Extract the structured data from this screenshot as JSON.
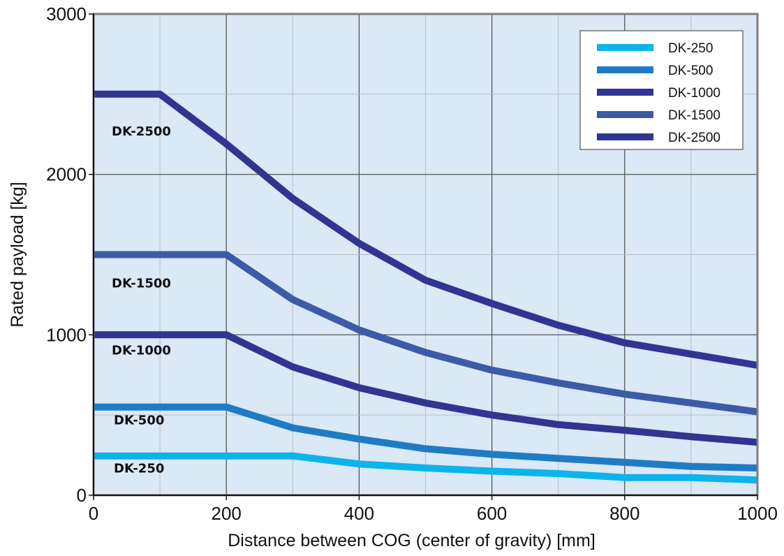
{
  "chart_data": {
    "type": "line",
    "xlabel": "Distance between COG (center of gravity) [mm]",
    "ylabel": "Rated payload [kg]",
    "xlim": [
      0,
      1000
    ],
    "ylim": [
      0,
      3000
    ],
    "x_ticks": [
      "0",
      "200",
      "400",
      "600",
      "800",
      "1000"
    ],
    "y_ticks": [
      "0",
      "1000",
      "2000",
      "3000"
    ],
    "grid": true,
    "legend_position": "top-right",
    "x": [
      0,
      100,
      200,
      300,
      400,
      500,
      600,
      700,
      800,
      900,
      1000
    ],
    "series": [
      {
        "name": "DK-250",
        "color": "#0db3ec",
        "curve_label": "DK-250",
        "values": [
          245,
          245,
          245,
          245,
          195,
          170,
          150,
          135,
          110,
          110,
          95
        ]
      },
      {
        "name": "DK-500",
        "color": "#1f7cc4",
        "curve_label": "DK-500",
        "values": [
          550,
          550,
          550,
          420,
          350,
          290,
          255,
          230,
          205,
          180,
          170
        ]
      },
      {
        "name": "DK-1000",
        "color": "#2f3590",
        "curve_label": "DK-1000",
        "values": [
          1000,
          1000,
          1000,
          800,
          670,
          575,
          500,
          440,
          405,
          365,
          330
        ]
      },
      {
        "name": "DK-1500",
        "color": "#3d5aa6",
        "curve_label": "DK-1500",
        "values": [
          1500,
          1500,
          1500,
          1220,
          1030,
          890,
          780,
          700,
          630,
          575,
          520
        ]
      },
      {
        "name": "DK-2500",
        "color": "#2f3590",
        "curve_label": "DK-2500",
        "values": [
          2500,
          2500,
          2190,
          1850,
          1570,
          1340,
          1195,
          1060,
          950,
          880,
          810
        ]
      }
    ]
  }
}
